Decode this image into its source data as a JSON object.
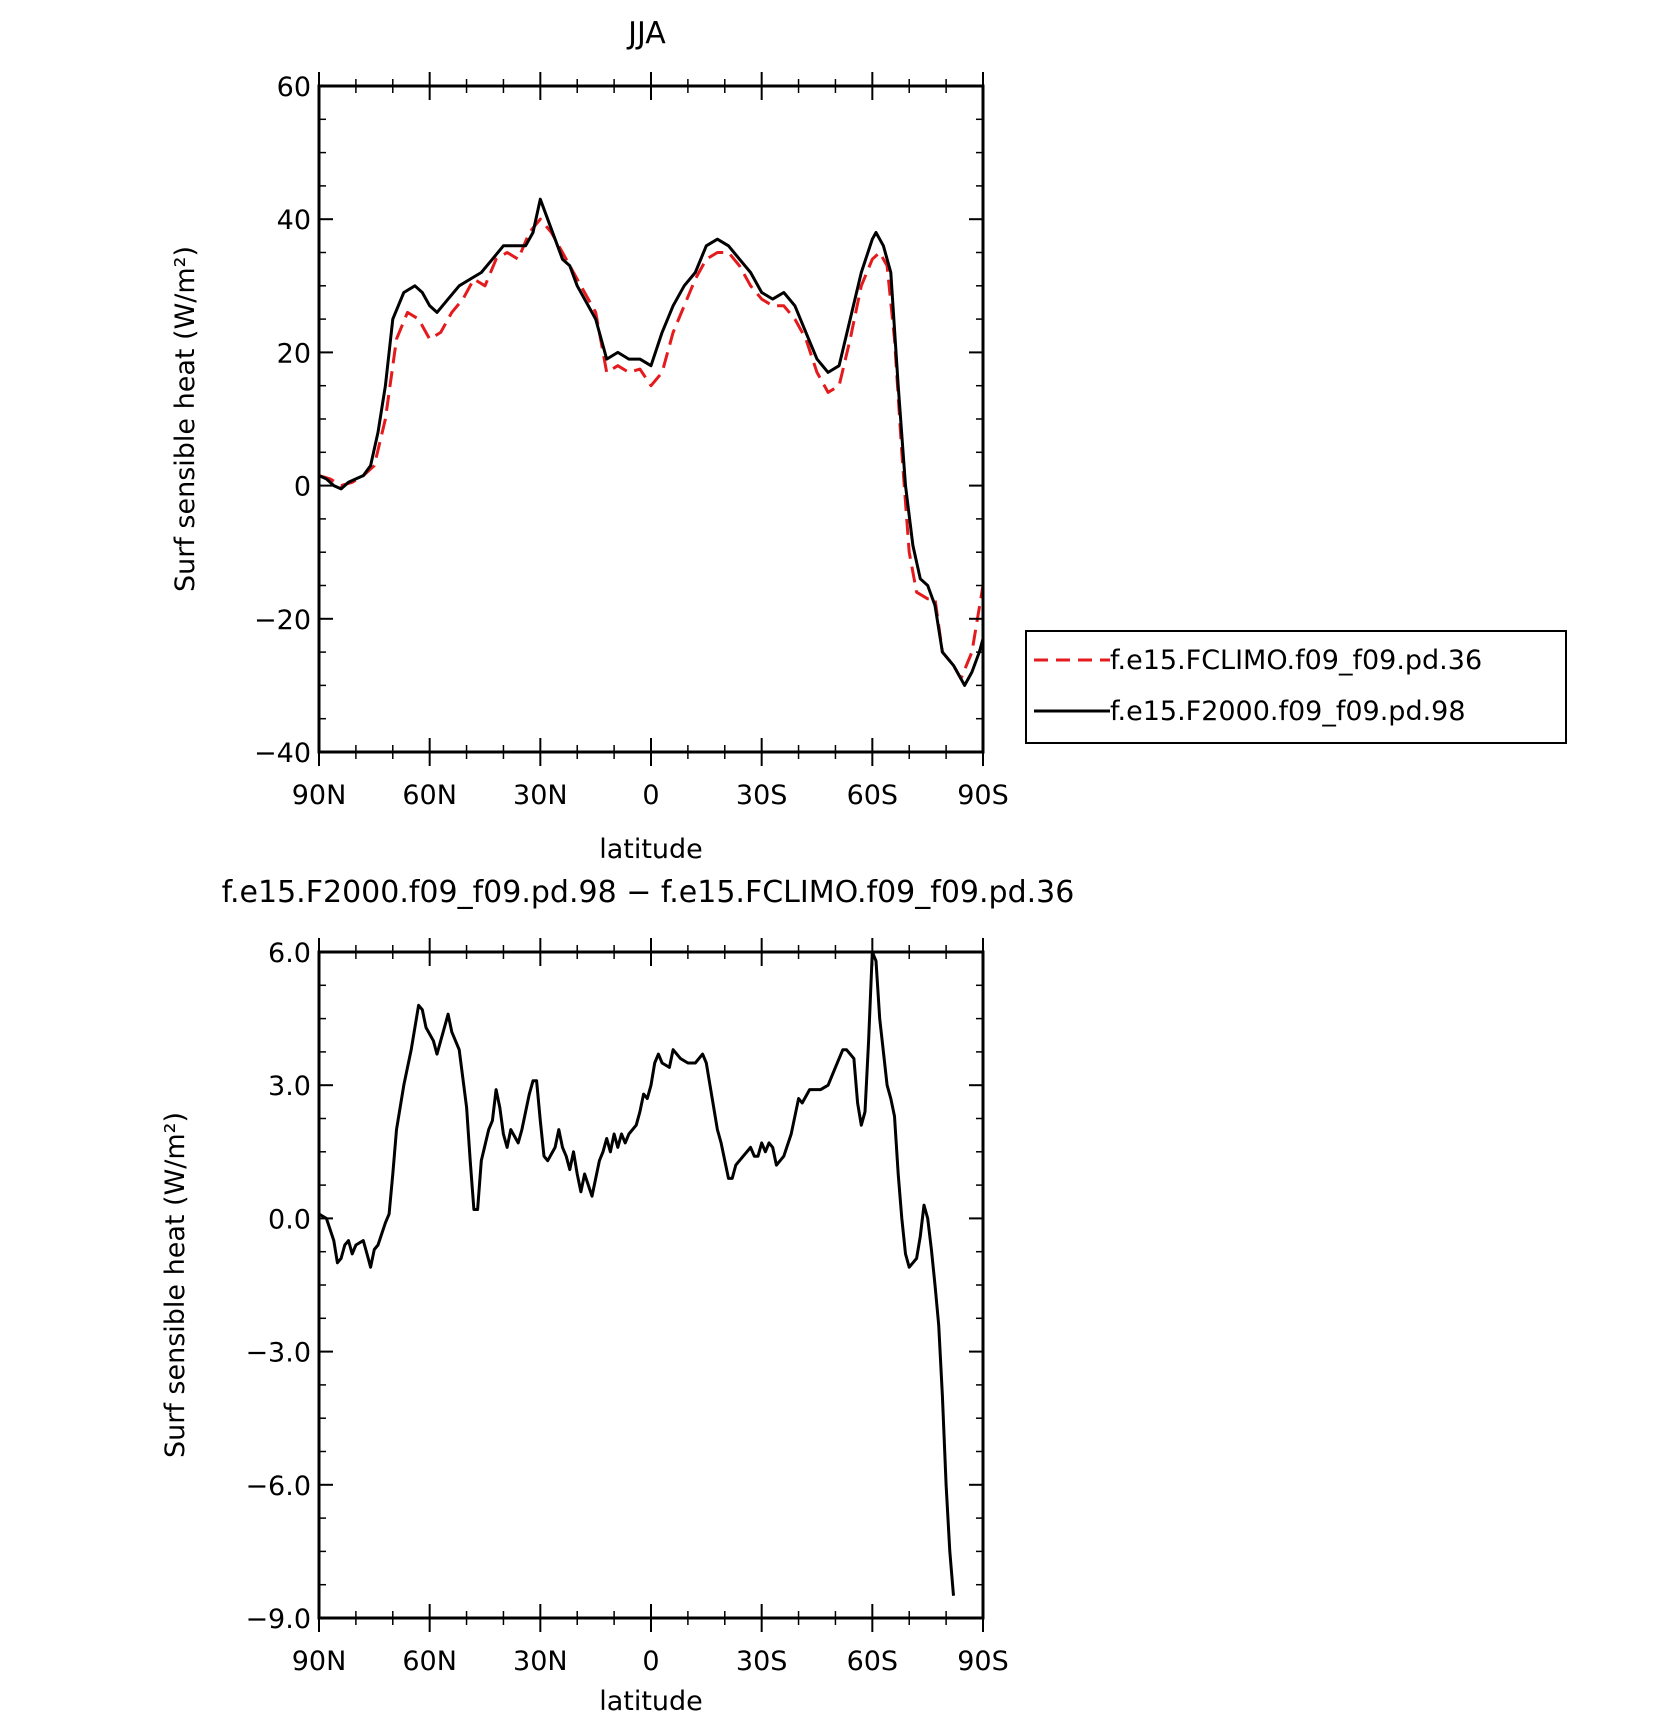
{
  "chart_data": [
    {
      "type": "line",
      "title": "JJA",
      "xlabel": "latitude",
      "ylabel": "Surf sensible heat (W/m²)",
      "xlim": [
        90,
        -90
      ],
      "ylim": [
        -40,
        60
      ],
      "yticks": [
        -40,
        -20,
        0,
        20,
        40,
        60
      ],
      "ytick_labels": [
        "−40",
        "−20",
        "0",
        "20",
        "40",
        "60"
      ],
      "xticks": [
        90,
        60,
        30,
        0,
        -30,
        -60,
        -90
      ],
      "xtick_labels": [
        "90N",
        "60N",
        "30N",
        "0",
        "30S",
        "60S",
        "90S"
      ],
      "legend": "right",
      "series": [
        {
          "name": "f.e15.FCLIMO.f09_f09.pd.36",
          "color": "#e41a1c",
          "dash": "dashed",
          "points": [
            [
              90,
              1.5
            ],
            [
              87,
              1
            ],
            [
              84,
              0
            ],
            [
              81,
              0.5
            ],
            [
              78,
              1.5
            ],
            [
              75,
              3
            ],
            [
              72,
              10
            ],
            [
              69,
              22
            ],
            [
              66,
              26
            ],
            [
              63,
              25
            ],
            [
              60,
              22
            ],
            [
              57,
              23
            ],
            [
              54,
              26
            ],
            [
              51,
              28
            ],
            [
              48,
              31
            ],
            [
              45,
              30
            ],
            [
              42,
              34
            ],
            [
              39,
              35
            ],
            [
              36,
              34
            ],
            [
              33,
              38
            ],
            [
              30,
              40
            ],
            [
              27,
              38
            ],
            [
              24,
              35
            ],
            [
              21,
              32
            ],
            [
              18,
              29
            ],
            [
              15,
              26
            ],
            [
              12,
              17
            ],
            [
              9,
              18
            ],
            [
              6,
              17
            ],
            [
              3,
              17.5
            ],
            [
              0,
              15
            ],
            [
              -3,
              17
            ],
            [
              -6,
              23
            ],
            [
              -9,
              27
            ],
            [
              -12,
              31
            ],
            [
              -15,
              34
            ],
            [
              -18,
              35
            ],
            [
              -21,
              35
            ],
            [
              -24,
              33
            ],
            [
              -27,
              30
            ],
            [
              -30,
              28
            ],
            [
              -33,
              27
            ],
            [
              -36,
              27
            ],
            [
              -39,
              25
            ],
            [
              -42,
              22
            ],
            [
              -45,
              17
            ],
            [
              -48,
              14
            ],
            [
              -51,
              15
            ],
            [
              -54,
              22
            ],
            [
              -57,
              30
            ],
            [
              -60,
              34
            ],
            [
              -62,
              35
            ],
            [
              -64,
              33
            ],
            [
              -66,
              22
            ],
            [
              -68,
              5
            ],
            [
              -70,
              -10
            ],
            [
              -72,
              -16
            ],
            [
              -75,
              -17
            ],
            [
              -77,
              -17
            ],
            [
              -79,
              -25
            ],
            [
              -82,
              -27
            ],
            [
              -84,
              -29
            ],
            [
              -87,
              -25
            ],
            [
              -90,
              -15
            ]
          ]
        },
        {
          "name": "f.e15.F2000.f09_f09.pd.98",
          "color": "#000000",
          "dash": "solid",
          "points": [
            [
              90,
              1.5
            ],
            [
              88,
              1
            ],
            [
              86,
              0
            ],
            [
              84,
              -0.5
            ],
            [
              82,
              0.5
            ],
            [
              80,
              1
            ],
            [
              78,
              1.5
            ],
            [
              76,
              3
            ],
            [
              74,
              8
            ],
            [
              72,
              15
            ],
            [
              70,
              25
            ],
            [
              67,
              29
            ],
            [
              64,
              30
            ],
            [
              62,
              29
            ],
            [
              60,
              27
            ],
            [
              58,
              26
            ],
            [
              55,
              28
            ],
            [
              52,
              30
            ],
            [
              49,
              31
            ],
            [
              46,
              32
            ],
            [
              43,
              34
            ],
            [
              40,
              36
            ],
            [
              37,
              36
            ],
            [
              34,
              36
            ],
            [
              32,
              38
            ],
            [
              30,
              43
            ],
            [
              28,
              40
            ],
            [
              26,
              37
            ],
            [
              24,
              34
            ],
            [
              22,
              33
            ],
            [
              20,
              30
            ],
            [
              18,
              28
            ],
            [
              15,
              25
            ],
            [
              12,
              19
            ],
            [
              9,
              20
            ],
            [
              6,
              19
            ],
            [
              3,
              19
            ],
            [
              0,
              18
            ],
            [
              -3,
              23
            ],
            [
              -6,
              27
            ],
            [
              -9,
              30
            ],
            [
              -12,
              32
            ],
            [
              -15,
              36
            ],
            [
              -18,
              37
            ],
            [
              -21,
              36
            ],
            [
              -24,
              34
            ],
            [
              -27,
              32
            ],
            [
              -30,
              29
            ],
            [
              -33,
              28
            ],
            [
              -36,
              29
            ],
            [
              -39,
              27
            ],
            [
              -42,
              23
            ],
            [
              -45,
              19
            ],
            [
              -48,
              17
            ],
            [
              -51,
              18
            ],
            [
              -54,
              25
            ],
            [
              -57,
              32
            ],
            [
              -60,
              37
            ],
            [
              -61,
              38
            ],
            [
              -63,
              36
            ],
            [
              -65,
              32
            ],
            [
              -67,
              15
            ],
            [
              -69,
              0
            ],
            [
              -71,
              -9
            ],
            [
              -73,
              -14
            ],
            [
              -75,
              -15
            ],
            [
              -77,
              -18
            ],
            [
              -79,
              -25
            ],
            [
              -82,
              -27
            ],
            [
              -84,
              -29
            ],
            [
              -85,
              -30
            ],
            [
              -87,
              -28
            ],
            [
              -89,
              -25
            ],
            [
              -90,
              -23
            ]
          ]
        }
      ]
    },
    {
      "type": "line",
      "title": "f.e15.F2000.f09_f09.pd.98 − f.e15.FCLIMO.f09_f09.pd.36",
      "xlabel": "latitude",
      "ylabel": "Surf sensible heat (W/m²)",
      "xlim": [
        90,
        -90
      ],
      "ylim": [
        -9,
        6
      ],
      "yticks": [
        -9,
        -6,
        -3,
        0,
        3,
        6
      ],
      "ytick_labels": [
        "−9.0",
        "−6.0",
        "−3.0",
        "0.0",
        "3.0",
        "6.0"
      ],
      "xticks": [
        90,
        60,
        30,
        0,
        -30,
        -60,
        -90
      ],
      "xtick_labels": [
        "90N",
        "60N",
        "30N",
        "0",
        "30S",
        "60S",
        "90S"
      ],
      "series": [
        {
          "color": "#000000",
          "dash": "solid",
          "points": [
            [
              90,
              0.1
            ],
            [
              88,
              0
            ],
            [
              86,
              -0.5
            ],
            [
              85,
              -1
            ],
            [
              84,
              -0.9
            ],
            [
              83,
              -0.6
            ],
            [
              82,
              -0.5
            ],
            [
              81,
              -0.8
            ],
            [
              80,
              -0.6
            ],
            [
              78,
              -0.5
            ],
            [
              77,
              -0.8
            ],
            [
              76,
              -1.1
            ],
            [
              75,
              -0.7
            ],
            [
              74,
              -0.6
            ],
            [
              72,
              -0.1
            ],
            [
              71,
              0.1
            ],
            [
              70,
              1
            ],
            [
              69,
              2
            ],
            [
              67,
              3
            ],
            [
              65,
              3.8
            ],
            [
              63,
              4.8
            ],
            [
              62,
              4.7
            ],
            [
              61,
              4.3
            ],
            [
              59,
              4
            ],
            [
              58,
              3.7
            ],
            [
              57,
              4
            ],
            [
              55,
              4.6
            ],
            [
              54,
              4.2
            ],
            [
              52,
              3.8
            ],
            [
              50,
              2.5
            ],
            [
              49,
              1.3
            ],
            [
              48,
              0.2
            ],
            [
              47,
              0.2
            ],
            [
              46,
              1.3
            ],
            [
              44,
              2
            ],
            [
              43,
              2.2
            ],
            [
              42,
              2.9
            ],
            [
              41,
              2.5
            ],
            [
              40,
              1.9
            ],
            [
              39,
              1.6
            ],
            [
              38,
              2
            ],
            [
              36,
              1.7
            ],
            [
              35,
              2
            ],
            [
              33,
              2.8
            ],
            [
              32,
              3.1
            ],
            [
              31,
              3.1
            ],
            [
              30,
              2.2
            ],
            [
              29,
              1.4
            ],
            [
              28,
              1.3
            ],
            [
              26,
              1.6
            ],
            [
              25,
              2
            ],
            [
              24,
              1.6
            ],
            [
              23,
              1.4
            ],
            [
              22,
              1.1
            ],
            [
              21,
              1.5
            ],
            [
              20,
              1
            ],
            [
              19,
              0.6
            ],
            [
              18,
              1
            ],
            [
              16,
              0.5
            ],
            [
              15,
              0.9
            ],
            [
              14,
              1.3
            ],
            [
              13,
              1.5
            ],
            [
              12,
              1.8
            ],
            [
              11,
              1.5
            ],
            [
              10,
              1.9
            ],
            [
              9,
              1.6
            ],
            [
              8,
              1.9
            ],
            [
              7,
              1.7
            ],
            [
              6,
              1.9
            ],
            [
              4,
              2.1
            ],
            [
              3,
              2.4
            ],
            [
              2,
              2.8
            ],
            [
              1,
              2.7
            ],
            [
              0,
              3
            ],
            [
              -1,
              3.5
            ],
            [
              -2,
              3.7
            ],
            [
              -3,
              3.5
            ],
            [
              -5,
              3.4
            ],
            [
              -6,
              3.8
            ],
            [
              -8,
              3.6
            ],
            [
              -10,
              3.5
            ],
            [
              -12,
              3.5
            ],
            [
              -14,
              3.7
            ],
            [
              -15,
              3.5
            ],
            [
              -16,
              3
            ],
            [
              -18,
              2
            ],
            [
              -19,
              1.7
            ],
            [
              -20,
              1.3
            ],
            [
              -21,
              0.9
            ],
            [
              -22,
              0.9
            ],
            [
              -23,
              1.2
            ],
            [
              -25,
              1.4
            ],
            [
              -27,
              1.6
            ],
            [
              -28,
              1.4
            ],
            [
              -29,
              1.4
            ],
            [
              -30,
              1.7
            ],
            [
              -31,
              1.5
            ],
            [
              -32,
              1.7
            ],
            [
              -33,
              1.6
            ],
            [
              -34,
              1.2
            ],
            [
              -35,
              1.3
            ],
            [
              -36,
              1.4
            ],
            [
              -38,
              1.9
            ],
            [
              -40,
              2.7
            ],
            [
              -41,
              2.6
            ],
            [
              -43,
              2.9
            ],
            [
              -44,
              2.9
            ],
            [
              -46,
              2.9
            ],
            [
              -48,
              3
            ],
            [
              -50,
              3.4
            ],
            [
              -52,
              3.8
            ],
            [
              -53,
              3.8
            ],
            [
              -55,
              3.6
            ],
            [
              -56,
              2.6
            ],
            [
              -57,
              2.1
            ],
            [
              -58,
              2.4
            ],
            [
              -59,
              4
            ],
            [
              -60,
              6
            ],
            [
              -61,
              5.8
            ],
            [
              -62,
              4.5
            ],
            [
              -64,
              3
            ],
            [
              -65,
              2.7
            ],
            [
              -66,
              2.3
            ],
            [
              -67,
              1
            ],
            [
              -68,
              0
            ],
            [
              -69,
              -0.8
            ],
            [
              -70,
              -1.1
            ],
            [
              -71,
              -1
            ],
            [
              -72,
              -0.9
            ],
            [
              -73,
              -0.4
            ],
            [
              -74,
              0.3
            ],
            [
              -75,
              0
            ],
            [
              -76,
              -0.7
            ],
            [
              -77,
              -1.5
            ],
            [
              -78,
              -2.4
            ],
            [
              -79,
              -4
            ],
            [
              -80,
              -6
            ],
            [
              -81,
              -7.5
            ],
            [
              -82,
              -8.5
            ]
          ]
        }
      ]
    }
  ]
}
